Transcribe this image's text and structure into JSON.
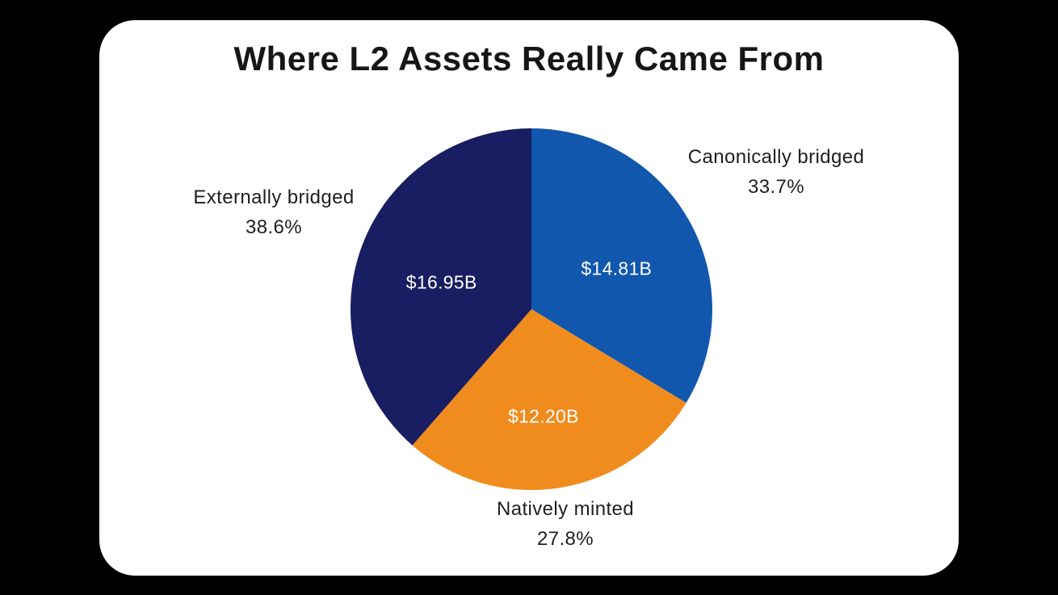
{
  "background_color": "#000000",
  "card": {
    "bg": "#ffffff"
  },
  "chart_data": {
    "type": "pie",
    "title": "Where L2 Assets Really Came From",
    "start_angle_deg": 0,
    "direction": "clockwise",
    "labels_position": "outside",
    "values_position": "inside",
    "slices": [
      {
        "label": "Canonically bridged",
        "pct": 33.7,
        "pct_label": "33.7%",
        "value": 14.81,
        "value_label": "$14.81B",
        "color": "#1157ad"
      },
      {
        "label": "Natively minted",
        "pct": 27.8,
        "pct_label": "27.8%",
        "value": 12.2,
        "value_label": "$12.20B",
        "color": "#f08c1e"
      },
      {
        "label": "Externally bridged",
        "pct": 38.6,
        "pct_label": "38.6%",
        "value": 16.95,
        "value_label": "$16.95B",
        "color": "#191d61"
      }
    ],
    "value_text_color": "#ffffff",
    "label_text_color": "#1f1f1f"
  }
}
